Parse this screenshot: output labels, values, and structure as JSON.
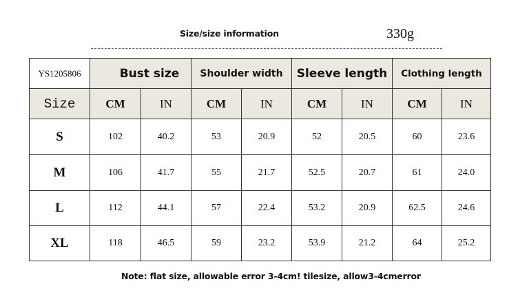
{
  "header": {
    "title": "Size/size information",
    "weight": "330g"
  },
  "table": {
    "model": "YS1205806",
    "groups": [
      "Bust size",
      "Shoulder width",
      "Sleeve length",
      "Clothing length"
    ],
    "size_label": "Size",
    "units": [
      "CM",
      "IN",
      "CM",
      "IN",
      "CM",
      "IN",
      "CM",
      "IN"
    ],
    "rows": [
      {
        "size": "S",
        "values": [
          "102",
          "40.2",
          "53",
          "20.9",
          "52",
          "20.5",
          "60",
          "23.6"
        ]
      },
      {
        "size": "M",
        "values": [
          "106",
          "41.7",
          "55",
          "21.7",
          "52.5",
          "20.7",
          "61",
          "24.0"
        ]
      },
      {
        "size": "L",
        "values": [
          "112",
          "44.1",
          "57",
          "22.4",
          "53.2",
          "20.9",
          "62.5",
          "24.6"
        ]
      },
      {
        "size": "XL",
        "values": [
          "118",
          "46.5",
          "59",
          "23.2",
          "53.9",
          "21.2",
          "64",
          "25.2"
        ]
      }
    ]
  },
  "note": "Note: flat size, allowable error 3-4cm! tilesize, allow3-4cmerror",
  "colors": {
    "header_bg": "#ebe9df",
    "border": "#333333"
  }
}
